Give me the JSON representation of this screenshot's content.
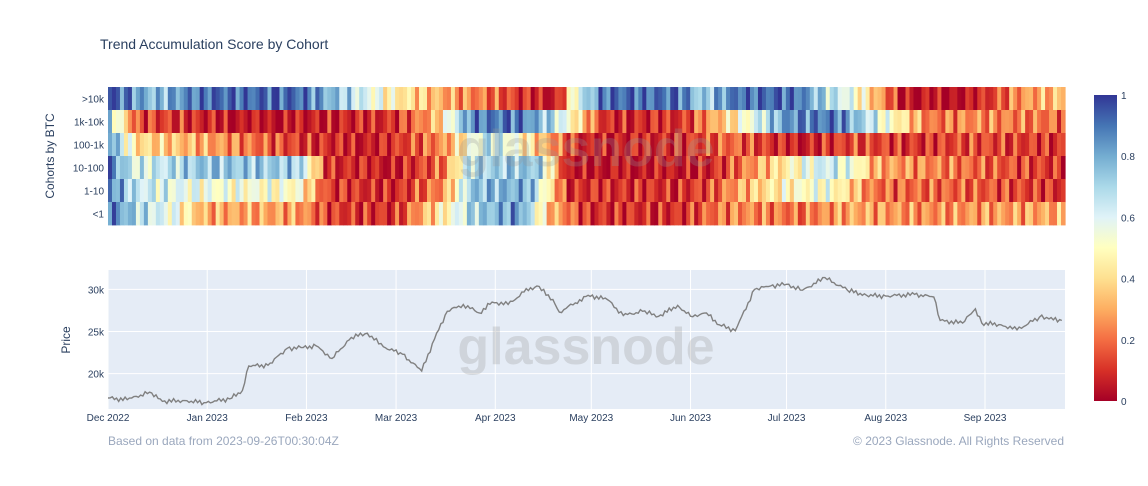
{
  "title": "Trend Accumulation Score by Cohort",
  "footer": {
    "source": "Based on data from 2023-09-26T00:30:04Z",
    "copyright": "© 2023 Glassnode. All Rights Reserved"
  },
  "watermark": "glassnode",
  "chart_data": [
    {
      "type": "heatmap",
      "ylabel": "Cohorts by BTC",
      "rows": [
        ">10k",
        "1k-10k",
        "100-1k",
        "10-100",
        "1-10",
        "<1"
      ],
      "x_range": [
        "2022-12-01",
        "2023-09-26"
      ],
      "colorbar": {
        "range": [
          0,
          1
        ],
        "ticks": [
          "0",
          "0.2",
          "0.4",
          "0.6",
          "0.8",
          "1"
        ]
      },
      "colors": {
        "low": "#a50026",
        "mid": "#ffffbf",
        "high": "#313695"
      },
      "segments": [
        [
          [
            0,
            0.96
          ],
          [
            5,
            0.75
          ],
          [
            10,
            0.92
          ],
          [
            20,
            0.92
          ],
          [
            26,
            0.65
          ],
          [
            30,
            0.45
          ],
          [
            35,
            0.3
          ],
          [
            40,
            0.2
          ],
          [
            44,
            0.08
          ],
          [
            47,
            0.05
          ],
          [
            49,
            0.6
          ],
          [
            52,
            0.92
          ],
          [
            60,
            0.9
          ],
          [
            62,
            0.7
          ],
          [
            66,
            0.92
          ],
          [
            72,
            0.92
          ],
          [
            74,
            0.75
          ],
          [
            78,
            0.55
          ],
          [
            83,
            0.05
          ],
          [
            90,
            0.02
          ],
          [
            95,
            0.25
          ],
          [
            100,
            0.35
          ]
        ],
        [
          [
            0,
            0.75
          ],
          [
            3,
            0.15
          ],
          [
            15,
            0.03
          ],
          [
            30,
            0.1
          ],
          [
            34,
            0.3
          ],
          [
            38,
            0.88
          ],
          [
            43,
            0.9
          ],
          [
            47,
            0.65
          ],
          [
            52,
            0.08
          ],
          [
            60,
            0.1
          ],
          [
            65,
            0.4
          ],
          [
            71,
            0.85
          ],
          [
            76,
            0.9
          ],
          [
            82,
            0.5
          ],
          [
            86,
            0.2
          ],
          [
            90,
            0.25
          ],
          [
            100,
            0.2
          ]
        ],
        [
          [
            0,
            0.88
          ],
          [
            3,
            0.4
          ],
          [
            10,
            0.3
          ],
          [
            20,
            0.12
          ],
          [
            28,
            0.05
          ],
          [
            35,
            0.25
          ],
          [
            40,
            0.7
          ],
          [
            45,
            0.35
          ],
          [
            50,
            0.05
          ],
          [
            60,
            0.1
          ],
          [
            65,
            0.2
          ],
          [
            72,
            0.05
          ],
          [
            78,
            0.15
          ],
          [
            85,
            0.1
          ],
          [
            90,
            0.15
          ],
          [
            100,
            0.1
          ]
        ],
        [
          [
            0,
            0.9
          ],
          [
            3,
            0.6
          ],
          [
            10,
            0.75
          ],
          [
            20,
            0.72
          ],
          [
            23,
            0.1
          ],
          [
            30,
            0.05
          ],
          [
            35,
            0.2
          ],
          [
            38,
            0.7
          ],
          [
            45,
            0.75
          ],
          [
            48,
            0.03
          ],
          [
            60,
            0.05
          ],
          [
            63,
            0.08
          ],
          [
            66,
            0.2
          ],
          [
            70,
            0.4
          ],
          [
            75,
            0.65
          ],
          [
            78,
            0.55
          ],
          [
            80,
            0.3
          ],
          [
            90,
            0.2
          ],
          [
            100,
            0.1
          ]
        ],
        [
          [
            0,
            0.9
          ],
          [
            3,
            0.65
          ],
          [
            10,
            0.55
          ],
          [
            20,
            0.5
          ],
          [
            23,
            0.12
          ],
          [
            30,
            0.08
          ],
          [
            35,
            0.25
          ],
          [
            38,
            0.75
          ],
          [
            44,
            0.8
          ],
          [
            48,
            0.1
          ],
          [
            60,
            0.1
          ],
          [
            63,
            0.15
          ],
          [
            66,
            0.3
          ],
          [
            70,
            0.45
          ],
          [
            75,
            0.55
          ],
          [
            78,
            0.35
          ],
          [
            80,
            0.2
          ],
          [
            90,
            0.18
          ],
          [
            100,
            0.1
          ]
        ],
        [
          [
            0,
            0.92
          ],
          [
            3,
            0.7
          ],
          [
            7,
            0.55
          ],
          [
            10,
            0.3
          ],
          [
            20,
            0.28
          ],
          [
            23,
            0.12
          ],
          [
            30,
            0.1
          ],
          [
            35,
            0.45
          ],
          [
            38,
            0.7
          ],
          [
            43,
            0.85
          ],
          [
            46,
            0.35
          ],
          [
            50,
            0.1
          ],
          [
            60,
            0.1
          ],
          [
            63,
            0.2
          ],
          [
            66,
            0.25
          ],
          [
            72,
            0.2
          ],
          [
            78,
            0.3
          ],
          [
            85,
            0.25
          ],
          [
            100,
            0.3
          ]
        ]
      ]
    },
    {
      "type": "line",
      "ylabel": "Price",
      "xlabel": "",
      "ylim": [
        15800,
        32300
      ],
      "yticks": [
        20000,
        25000,
        30000
      ],
      "ytick_labels": [
        "20k",
        "25k",
        "30k"
      ],
      "x_range": [
        "2022-12-01",
        "2023-09-26"
      ],
      "xticks": [
        {
          "date": "2022-12-01",
          "label": "Dec 2022"
        },
        {
          "date": "2023-01-01",
          "label": "Jan 2023"
        },
        {
          "date": "2023-02-01",
          "label": "Feb 2023"
        },
        {
          "date": "2023-03-01",
          "label": "Mar 2023"
        },
        {
          "date": "2023-04-01",
          "label": "Apr 2023"
        },
        {
          "date": "2023-05-01",
          "label": "May 2023"
        },
        {
          "date": "2023-06-01",
          "label": "Jun 2023"
        },
        {
          "date": "2023-07-01",
          "label": "Jul 2023"
        },
        {
          "date": "2023-08-01",
          "label": "Aug 2023"
        },
        {
          "date": "2023-09-01",
          "label": "Sep 2023"
        }
      ],
      "series": [
        {
          "color": "#808080",
          "points": [
            [
              "2022-12-01",
              17100
            ],
            [
              "2022-12-07",
              16900
            ],
            [
              "2022-12-14",
              17800
            ],
            [
              "2022-12-18",
              16700
            ],
            [
              "2022-12-25",
              16800
            ],
            [
              "2022-12-31",
              16550
            ],
            [
              "2023-01-08",
              17000
            ],
            [
              "2023-01-12",
              18000
            ],
            [
              "2023-01-14",
              20900
            ],
            [
              "2023-01-20",
              21000
            ],
            [
              "2023-01-26",
              23000
            ],
            [
              "2023-01-31",
              23100
            ],
            [
              "2023-02-04",
              23300
            ],
            [
              "2023-02-09",
              21800
            ],
            [
              "2023-02-15",
              24300
            ],
            [
              "2023-02-20",
              24800
            ],
            [
              "2023-02-25",
              23200
            ],
            [
              "2023-03-03",
              22300
            ],
            [
              "2023-03-09",
              20300
            ],
            [
              "2023-03-13",
              24100
            ],
            [
              "2023-03-17",
              27400
            ],
            [
              "2023-03-22",
              28200
            ],
            [
              "2023-03-27",
              27200
            ],
            [
              "2023-03-31",
              28500
            ],
            [
              "2023-04-05",
              28200
            ],
            [
              "2023-04-10",
              29700
            ],
            [
              "2023-04-14",
              30400
            ],
            [
              "2023-04-19",
              28800
            ],
            [
              "2023-04-21",
              27300
            ],
            [
              "2023-04-26",
              28400
            ],
            [
              "2023-04-30",
              29300
            ],
            [
              "2023-05-06",
              28800
            ],
            [
              "2023-05-11",
              26900
            ],
            [
              "2023-05-17",
              27400
            ],
            [
              "2023-05-22",
              26800
            ],
            [
              "2023-05-28",
              28100
            ],
            [
              "2023-06-01",
              26800
            ],
            [
              "2023-06-06",
              27200
            ],
            [
              "2023-06-10",
              25800
            ],
            [
              "2023-06-15",
              25100
            ],
            [
              "2023-06-21",
              30000
            ],
            [
              "2023-06-26",
              30400
            ],
            [
              "2023-07-01",
              30600
            ],
            [
              "2023-07-06",
              29900
            ],
            [
              "2023-07-13",
              31400
            ],
            [
              "2023-07-20",
              29900
            ],
            [
              "2023-07-26",
              29300
            ],
            [
              "2023-08-01",
              29200
            ],
            [
              "2023-08-10",
              29400
            ],
            [
              "2023-08-16",
              29100
            ],
            [
              "2023-08-18",
              26300
            ],
            [
              "2023-08-25",
              26000
            ],
            [
              "2023-08-29",
              27700
            ],
            [
              "2023-08-31",
              26000
            ],
            [
              "2023-09-06",
              25800
            ],
            [
              "2023-09-11",
              25200
            ],
            [
              "2023-09-18",
              26700
            ],
            [
              "2023-09-21",
              26500
            ],
            [
              "2023-09-25",
              26300
            ]
          ]
        }
      ]
    }
  ]
}
